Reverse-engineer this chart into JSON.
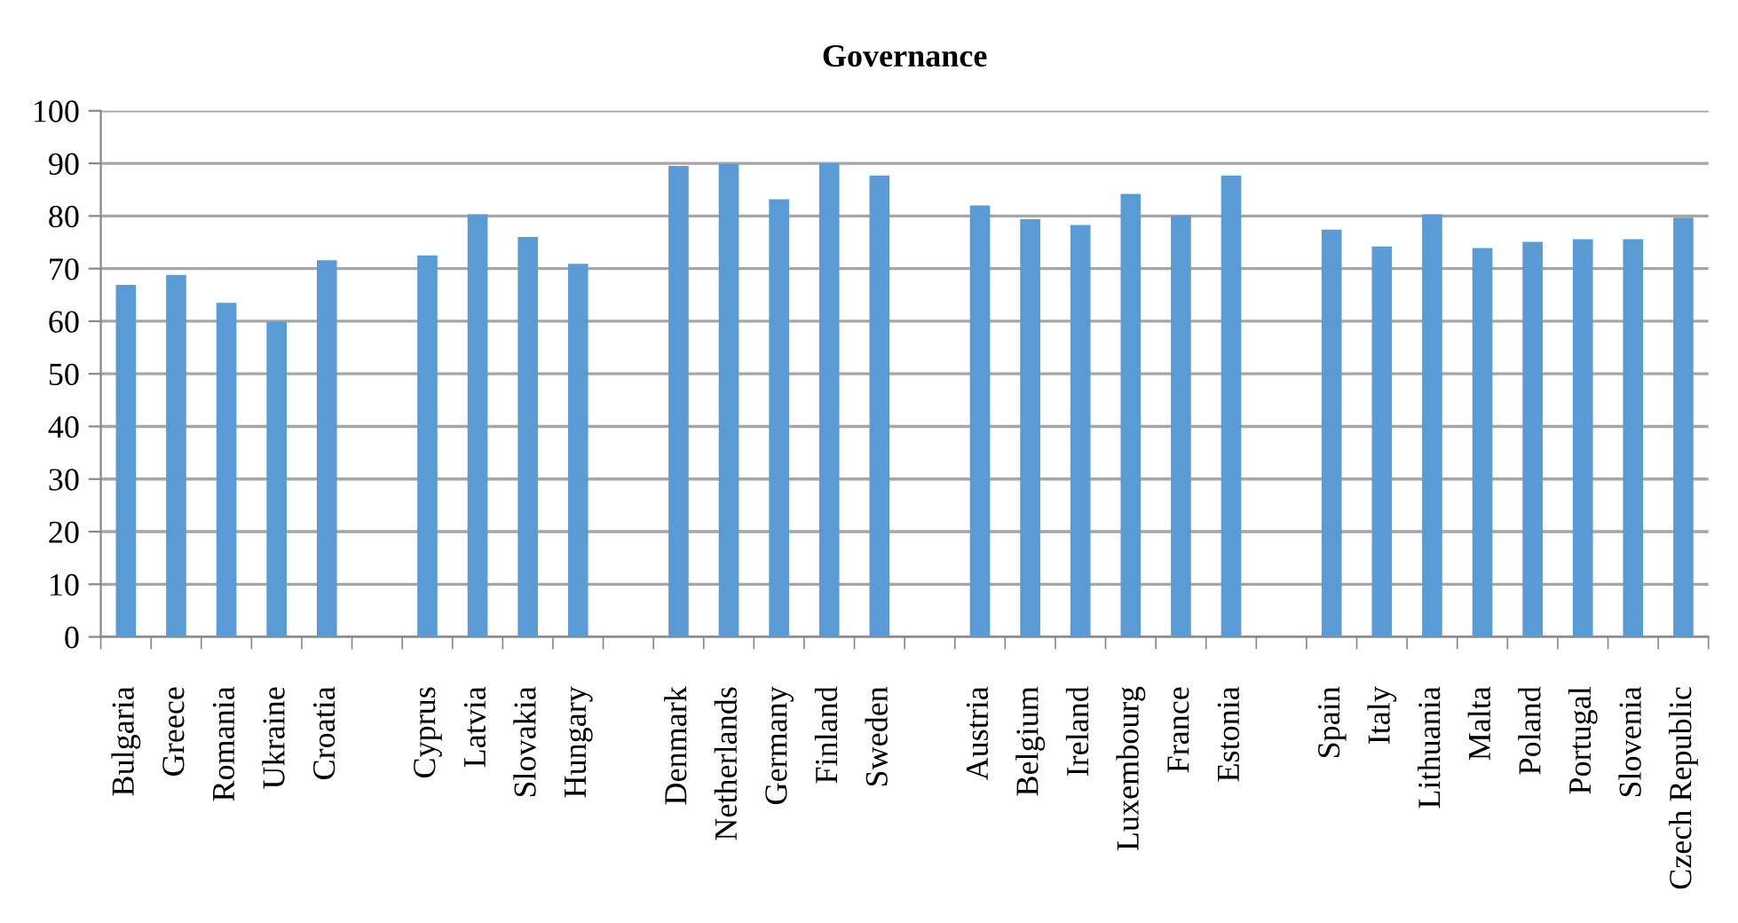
{
  "chart_data": {
    "type": "bar",
    "title": "Governance",
    "categories": [
      "Bulgaria",
      "Greece",
      "Romania",
      "Ukraine",
      "Croatia",
      null,
      "Cyprus",
      "Latvia",
      "Slovakia",
      "Hungary",
      null,
      "Denmark",
      "Netherlands",
      "Germany",
      "Finland",
      "Sweden",
      null,
      "Austria",
      "Belgium",
      "Ireland",
      "Luxembourg",
      "France",
      "Estonia",
      null,
      "Spain",
      "Italy",
      "Lithuania",
      "Malta",
      "Poland",
      "Portugal",
      "Slovenia",
      "Czech Republic"
    ],
    "values": [
      66.9,
      68.8,
      63.5,
      59.9,
      71.6,
      null,
      72.5,
      80.3,
      76.0,
      70.9,
      null,
      89.5,
      89.9,
      83.2,
      90.0,
      87.7,
      null,
      82.0,
      79.4,
      78.3,
      84.2,
      80.1,
      87.7,
      null,
      77.4,
      74.2,
      80.3,
      73.9,
      75.1,
      75.6,
      75.6,
      79.7
    ],
    "color": "#5b9bd5",
    "ylim": [
      0,
      100
    ],
    "yticks": [
      0,
      10,
      20,
      30,
      40,
      50,
      60,
      70,
      80,
      90,
      100
    ],
    "grid": "y"
  }
}
